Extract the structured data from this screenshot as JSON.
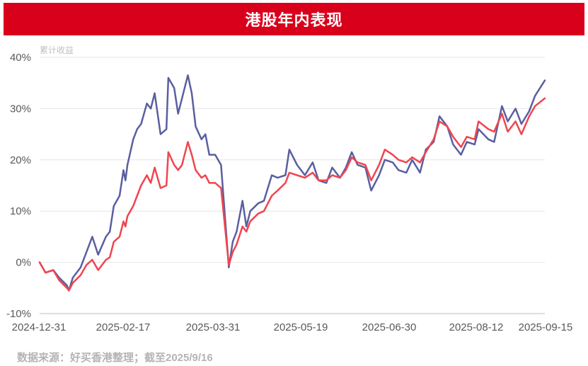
{
  "header": {
    "title": "港股年内表现"
  },
  "footer": {
    "source": "数据来源：好买香港整理；截至2025/9/16"
  },
  "colors": {
    "banner": "#d9001b",
    "series_blue": "#5a5fa0",
    "series_red": "#f0454f",
    "grid": "#e6e6e6"
  },
  "chart_data": {
    "type": "line",
    "title": "港股年内表现",
    "ylabel": "累计收益",
    "xlabel": "",
    "ylim": [
      -10,
      40
    ],
    "yticks": [
      -10,
      0,
      10,
      20,
      30,
      40
    ],
    "ytick_labels": [
      "-10%",
      "0%",
      "10%",
      "20%",
      "30%",
      "40%"
    ],
    "xlim": [
      "2024-12-31",
      "2025-09-16"
    ],
    "xtick_labels": [
      "2024-12-31",
      "2025-02-17",
      "2025-03-31",
      "2025-05-19",
      "2025-06-30",
      "2025-08-12",
      "2025-09-15"
    ],
    "grid": "horizontal",
    "legend": "none",
    "series": [
      {
        "color": "#5a5fa0",
        "points": [
          [
            "2024-12-31",
            0
          ],
          [
            "2025-01-03",
            -2
          ],
          [
            "2025-01-07",
            -1.5
          ],
          [
            "2025-01-10",
            -3
          ],
          [
            "2025-01-14",
            -4.5
          ],
          [
            "2025-01-15",
            -5.5
          ],
          [
            "2025-01-17",
            -3
          ],
          [
            "2025-01-21",
            -1
          ],
          [
            "2025-01-24",
            2
          ],
          [
            "2025-01-27",
            5
          ],
          [
            "2025-01-30",
            1.5
          ],
          [
            "2025-02-03",
            5
          ],
          [
            "2025-02-05",
            6
          ],
          [
            "2025-02-07",
            11
          ],
          [
            "2025-02-10",
            13
          ],
          [
            "2025-02-12",
            18
          ],
          [
            "2025-02-13",
            16
          ],
          [
            "2025-02-14",
            19
          ],
          [
            "2025-02-17",
            24
          ],
          [
            "2025-02-19",
            26
          ],
          [
            "2025-02-21",
            27
          ],
          [
            "2025-02-24",
            31
          ],
          [
            "2025-02-26",
            30
          ],
          [
            "2025-02-28",
            33
          ],
          [
            "2025-03-03",
            25
          ],
          [
            "2025-03-06",
            26
          ],
          [
            "2025-03-07",
            36
          ],
          [
            "2025-03-10",
            34
          ],
          [
            "2025-03-12",
            29
          ],
          [
            "2025-03-14",
            32
          ],
          [
            "2025-03-17",
            36.5
          ],
          [
            "2025-03-19",
            33
          ],
          [
            "2025-03-21",
            26.5
          ],
          [
            "2025-03-24",
            24
          ],
          [
            "2025-03-26",
            25
          ],
          [
            "2025-03-28",
            21
          ],
          [
            "2025-03-31",
            21
          ],
          [
            "2025-04-03",
            19
          ],
          [
            "2025-04-07",
            -1
          ],
          [
            "2025-04-09",
            4
          ],
          [
            "2025-04-11",
            6
          ],
          [
            "2025-04-14",
            12
          ],
          [
            "2025-04-16",
            7
          ],
          [
            "2025-04-18",
            10
          ],
          [
            "2025-04-22",
            11.5
          ],
          [
            "2025-04-25",
            12
          ],
          [
            "2025-04-29",
            17
          ],
          [
            "2025-05-02",
            16.5
          ],
          [
            "2025-05-06",
            17
          ],
          [
            "2025-05-08",
            22
          ],
          [
            "2025-05-12",
            19
          ],
          [
            "2025-05-16",
            17
          ],
          [
            "2025-05-20",
            19.5
          ],
          [
            "2025-05-23",
            16
          ],
          [
            "2025-05-27",
            15.5
          ],
          [
            "2025-05-30",
            18.5
          ],
          [
            "2025-06-03",
            16.5
          ],
          [
            "2025-06-06",
            18.5
          ],
          [
            "2025-06-09",
            21.5
          ],
          [
            "2025-06-12",
            19
          ],
          [
            "2025-06-16",
            18.5
          ],
          [
            "2025-06-19",
            14
          ],
          [
            "2025-06-23",
            17
          ],
          [
            "2025-06-26",
            20
          ],
          [
            "2025-06-30",
            19.5
          ],
          [
            "2025-07-03",
            18
          ],
          [
            "2025-07-07",
            17.5
          ],
          [
            "2025-07-10",
            20
          ],
          [
            "2025-07-14",
            17.5
          ],
          [
            "2025-07-17",
            22
          ],
          [
            "2025-07-21",
            23.5
          ],
          [
            "2025-07-24",
            28.5
          ],
          [
            "2025-07-28",
            26.5
          ],
          [
            "2025-07-31",
            23
          ],
          [
            "2025-08-04",
            21
          ],
          [
            "2025-08-07",
            23.5
          ],
          [
            "2025-08-11",
            23
          ],
          [
            "2025-08-13",
            26
          ],
          [
            "2025-08-18",
            24
          ],
          [
            "2025-08-21",
            23.5
          ],
          [
            "2025-08-25",
            30.5
          ],
          [
            "2025-08-28",
            27.5
          ],
          [
            "2025-09-01",
            30
          ],
          [
            "2025-09-04",
            27
          ],
          [
            "2025-09-08",
            29.5
          ],
          [
            "2025-09-11",
            32.5
          ],
          [
            "2025-09-16",
            35.5
          ]
        ]
      },
      {
        "color": "#f0454f",
        "points": [
          [
            "2024-12-31",
            0
          ],
          [
            "2025-01-03",
            -2
          ],
          [
            "2025-01-07",
            -1.5
          ],
          [
            "2025-01-10",
            -3.5
          ],
          [
            "2025-01-14",
            -5
          ],
          [
            "2025-01-15",
            -5.5
          ],
          [
            "2025-01-17",
            -4
          ],
          [
            "2025-01-21",
            -2.5
          ],
          [
            "2025-01-24",
            -0.5
          ],
          [
            "2025-01-27",
            0.5
          ],
          [
            "2025-01-30",
            -1.5
          ],
          [
            "2025-02-03",
            0.5
          ],
          [
            "2025-02-05",
            1
          ],
          [
            "2025-02-07",
            4
          ],
          [
            "2025-02-10",
            5
          ],
          [
            "2025-02-12",
            8
          ],
          [
            "2025-02-13",
            7
          ],
          [
            "2025-02-14",
            9
          ],
          [
            "2025-02-17",
            11
          ],
          [
            "2025-02-19",
            13
          ],
          [
            "2025-02-21",
            15
          ],
          [
            "2025-02-24",
            17
          ],
          [
            "2025-02-26",
            15.5
          ],
          [
            "2025-02-28",
            18.5
          ],
          [
            "2025-03-03",
            14.5
          ],
          [
            "2025-03-06",
            15
          ],
          [
            "2025-03-07",
            21.5
          ],
          [
            "2025-03-10",
            19
          ],
          [
            "2025-03-12",
            18
          ],
          [
            "2025-03-14",
            19
          ],
          [
            "2025-03-17",
            23.5
          ],
          [
            "2025-03-19",
            21
          ],
          [
            "2025-03-21",
            18
          ],
          [
            "2025-03-24",
            16.5
          ],
          [
            "2025-03-26",
            17
          ],
          [
            "2025-03-28",
            15.5
          ],
          [
            "2025-03-31",
            15.5
          ],
          [
            "2025-04-03",
            14.5
          ],
          [
            "2025-04-07",
            -0.5
          ],
          [
            "2025-04-09",
            2
          ],
          [
            "2025-04-11",
            3.5
          ],
          [
            "2025-04-14",
            7
          ],
          [
            "2025-04-16",
            6
          ],
          [
            "2025-04-18",
            8
          ],
          [
            "2025-04-22",
            9.5
          ],
          [
            "2025-04-25",
            10
          ],
          [
            "2025-04-29",
            13
          ],
          [
            "2025-05-02",
            14
          ],
          [
            "2025-05-06",
            15.5
          ],
          [
            "2025-05-08",
            17.5
          ],
          [
            "2025-05-12",
            17
          ],
          [
            "2025-05-16",
            16.5
          ],
          [
            "2025-05-20",
            17.5
          ],
          [
            "2025-05-23",
            16
          ],
          [
            "2025-05-27",
            16
          ],
          [
            "2025-05-30",
            17
          ],
          [
            "2025-06-03",
            16.5
          ],
          [
            "2025-06-06",
            18
          ],
          [
            "2025-06-09",
            20.5
          ],
          [
            "2025-06-12",
            19.5
          ],
          [
            "2025-06-16",
            19
          ],
          [
            "2025-06-19",
            16
          ],
          [
            "2025-06-23",
            19
          ],
          [
            "2025-06-26",
            22
          ],
          [
            "2025-06-30",
            21
          ],
          [
            "2025-07-03",
            20
          ],
          [
            "2025-07-07",
            19.5
          ],
          [
            "2025-07-10",
            20.5
          ],
          [
            "2025-07-14",
            19.5
          ],
          [
            "2025-07-17",
            21.5
          ],
          [
            "2025-07-21",
            24
          ],
          [
            "2025-07-24",
            27.5
          ],
          [
            "2025-07-28",
            26.5
          ],
          [
            "2025-07-31",
            24.5
          ],
          [
            "2025-08-04",
            22.5
          ],
          [
            "2025-08-07",
            24.5
          ],
          [
            "2025-08-11",
            24
          ],
          [
            "2025-08-13",
            27.5
          ],
          [
            "2025-08-18",
            26
          ],
          [
            "2025-08-21",
            25.5
          ],
          [
            "2025-08-25",
            29
          ],
          [
            "2025-08-28",
            25.5
          ],
          [
            "2025-09-01",
            27.5
          ],
          [
            "2025-09-04",
            25
          ],
          [
            "2025-09-08",
            28.5
          ],
          [
            "2025-09-11",
            30.5
          ],
          [
            "2025-09-16",
            32
          ]
        ]
      }
    ]
  }
}
